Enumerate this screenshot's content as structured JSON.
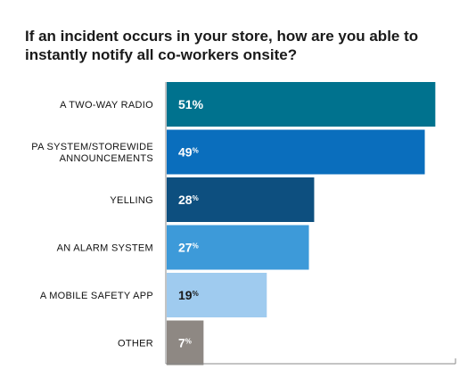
{
  "chart_data": {
    "type": "bar",
    "orientation": "horizontal",
    "title_lines": [
      "If an incident occurs in your store, how are you able to",
      "instantly notify all co-workers onsite?"
    ],
    "categories": [
      [
        "A TWO-WAY RADIO"
      ],
      [
        "PA SYSTEM/STOREWIDE",
        "ANNOUNCEMENTS"
      ],
      [
        "YELLING"
      ],
      [
        "AN ALARM SYSTEM"
      ],
      [
        "A MOBILE SAFETY APP"
      ],
      [
        "OTHER"
      ]
    ],
    "values": [
      51,
      49,
      28,
      27,
      19,
      7
    ],
    "value_labels": [
      {
        "num": "51",
        "suffix": "%"
      },
      {
        "num": "49",
        "suffix": "%"
      },
      {
        "num": "28",
        "suffix": "%"
      },
      {
        "num": "27",
        "suffix": "%"
      },
      {
        "num": "19",
        "suffix": "%"
      },
      {
        "num": "7",
        "suffix": "%"
      }
    ],
    "colors": [
      "#00728e",
      "#0a6ebd",
      "#0d4f7f",
      "#3d9ad9",
      "#9fcbef",
      "#8e8883"
    ],
    "label_colors": [
      "#ffffff",
      "#ffffff",
      "#ffffff",
      "#ffffff",
      "#1a1a1a",
      "#ffffff"
    ],
    "xlim": [
      0,
      55
    ],
    "grid": false,
    "legend": "none"
  }
}
